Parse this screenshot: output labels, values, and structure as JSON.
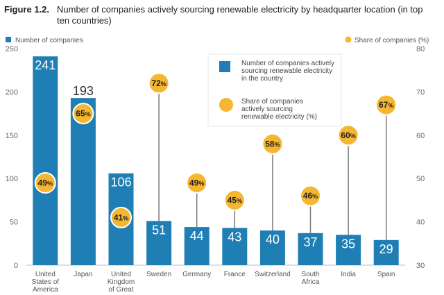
{
  "figure": {
    "label": "Figure 1.2.",
    "title": "Number of companies actively sourcing renewable electricity by headquarter location (in top ten countries)"
  },
  "chart_data": {
    "type": "bar",
    "categories": [
      [
        "United",
        "States of",
        "America"
      ],
      [
        "Japan"
      ],
      [
        "United",
        "Kingdom",
        "of Great"
      ],
      [
        "Sweden"
      ],
      [
        "Germany"
      ],
      [
        "France"
      ],
      [
        "Switzerland"
      ],
      [
        "South",
        "Africa"
      ],
      [
        "India"
      ],
      [
        "Spain"
      ]
    ],
    "series": [
      {
        "name": "Number of companies",
        "axis": "left",
        "values": [
          241,
          193,
          106,
          51,
          44,
          43,
          40,
          37,
          35,
          29
        ],
        "color": "#1f7fb5"
      },
      {
        "name": "Share of companies (%)",
        "axis": "right",
        "values": [
          49,
          65,
          41,
          72,
          49,
          45,
          58,
          46,
          60,
          67
        ],
        "color": "#f5b731"
      }
    ],
    "value_labels": [
      "241",
      "193",
      "106",
      "51",
      "44",
      "43",
      "40",
      "37",
      "35",
      "29"
    ],
    "share_labels": [
      "49",
      "65",
      "41",
      "72",
      "49",
      "45",
      "58",
      "46",
      "60",
      "67"
    ],
    "share_suffix": "%",
    "y_left": {
      "min": 0,
      "max": 250,
      "ticks": [
        "0",
        "50",
        "100",
        "150",
        "200",
        "250"
      ]
    },
    "y_right": {
      "min": 30,
      "max": 80,
      "ticks": [
        "30",
        "40",
        "50",
        "60",
        "70",
        "80"
      ]
    },
    "axis_headers": {
      "left": "Number of companies",
      "right": "Share of companies (%)"
    },
    "legend": {
      "position": "top-right",
      "bar_text": [
        "Number of companies actively",
        "sourcing renewable electricity",
        "in the country"
      ],
      "dot_text": [
        "Share of companies",
        "actively sourcing",
        "renewable electricity (%)"
      ]
    },
    "grid": false
  }
}
